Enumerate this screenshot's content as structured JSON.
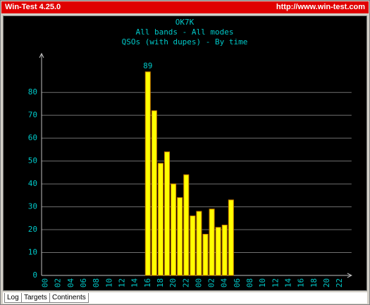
{
  "window": {
    "title": "Win-Test 4.25.0",
    "url": "http://www.win-test.com"
  },
  "tabs": [
    "Log",
    "Targets",
    "Continents"
  ],
  "chart_data": {
    "type": "bar",
    "title": "OK7K",
    "subtitle": [
      "All bands - All modes",
      "QSOs (with dupes) - By time"
    ],
    "categories": [
      "00",
      null,
      "02",
      null,
      "04",
      null,
      "06",
      null,
      "08",
      null,
      "10",
      null,
      "12",
      null,
      "14",
      null,
      "16",
      null,
      "18",
      null,
      "20",
      null,
      "22",
      null,
      "00",
      null,
      "02",
      null,
      "04",
      null,
      "06",
      null,
      "08",
      null,
      "10",
      null,
      "12",
      null,
      "14",
      null,
      "16",
      null,
      "18",
      null,
      "20",
      null,
      "22",
      null
    ],
    "values": [
      0,
      0,
      0,
      0,
      0,
      0,
      0,
      0,
      0,
      0,
      0,
      0,
      0,
      0,
      0,
      0,
      89,
      72,
      49,
      54,
      40,
      34,
      44,
      26,
      28,
      18,
      29,
      21,
      22,
      33,
      0,
      0,
      0,
      0,
      0,
      0,
      0,
      0,
      0,
      0,
      0,
      0,
      0,
      0,
      0,
      0,
      0,
      0
    ],
    "color": "#ffff00",
    "ylim": [
      0,
      97
    ],
    "yticks": [
      0,
      10,
      20,
      30,
      40,
      50,
      60,
      70,
      80
    ],
    "grid": true
  }
}
